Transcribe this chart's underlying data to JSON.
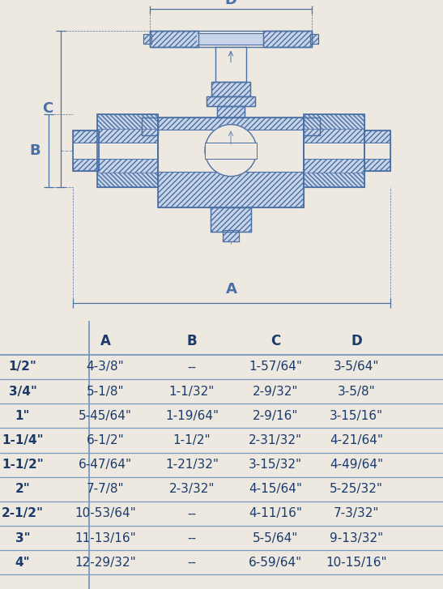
{
  "bg_color": "#ede8e0",
  "table_bg": "#ffffff",
  "line_color": "#4a6fa5",
  "text_color": "#1a3a6b",
  "divider_color": "#7a9abf",
  "fig_width": 5.47,
  "fig_height": 7.27,
  "dpi": 100,
  "col_headers": [
    "",
    "A",
    "B",
    "C",
    "D"
  ],
  "rows": [
    [
      "1/2\"",
      "4-3/8\"",
      "--",
      "1-57/64\"",
      "3-5/64\""
    ],
    [
      "3/4\"",
      "5-1/8\"",
      "1-1/32\"",
      "2-9/32\"",
      "3-5/8\""
    ],
    [
      "1\"",
      "5-45/64\"",
      "1-19/64\"",
      "2-9/16\"",
      "3-15/16\""
    ],
    [
      "1-1/4\"",
      "6-1/2\"",
      "1-1/2\"",
      "2-31/32\"",
      "4-21/64\""
    ],
    [
      "1-1/2\"",
      "6-47/64\"",
      "1-21/32\"",
      "3-15/32\"",
      "4-49/64\""
    ],
    [
      "2\"",
      "7-7/8\"",
      "2-3/32\"",
      "4-15/64\"",
      "5-25/32\""
    ],
    [
      "2-1/2\"",
      "10-53/64\"",
      "--",
      "4-11/16\"",
      "7-3/32\""
    ],
    [
      "3\"",
      "11-13/16\"",
      "--",
      "5-5/64\"",
      "9-13/32\""
    ],
    [
      "4\"",
      "12-29/32\"",
      "--",
      "6-59/64\"",
      "10-15/16\""
    ]
  ]
}
